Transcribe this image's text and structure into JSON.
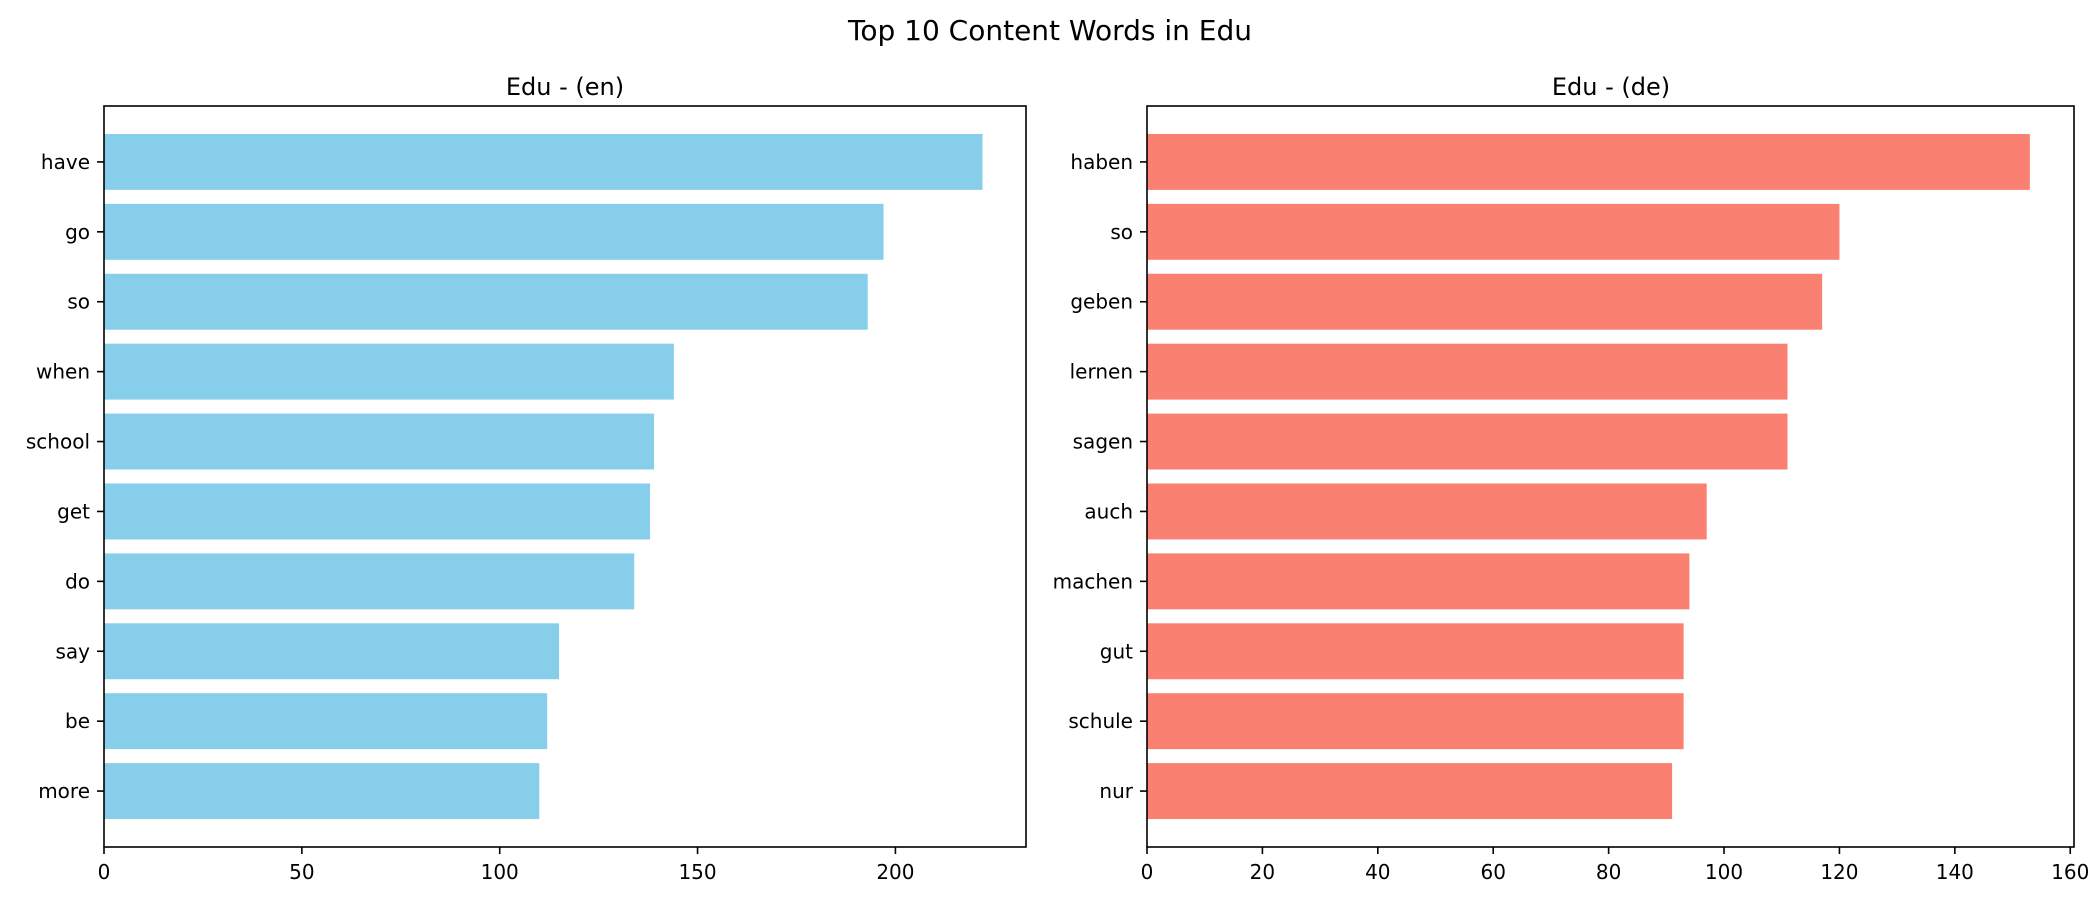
{
  "figure_title": "Top 10 Content Words in Edu",
  "chart_data": [
    {
      "type": "bar",
      "orientation": "horizontal",
      "title": "Edu - (en)",
      "xlabel": "",
      "ylabel": "",
      "categories": [
        "have",
        "go",
        "so",
        "when",
        "school",
        "get",
        "do",
        "say",
        "be",
        "more"
      ],
      "values": [
        222,
        197,
        193,
        144,
        139,
        138,
        134,
        115,
        112,
        110
      ],
      "xlim": [
        0,
        233
      ],
      "xticks": [
        0,
        50,
        100,
        150,
        200
      ],
      "color": "#87CEEB",
      "grid": false,
      "legend": "none"
    },
    {
      "type": "bar",
      "orientation": "horizontal",
      "title": "Edu - (de)",
      "xlabel": "",
      "ylabel": "",
      "categories": [
        "haben",
        "so",
        "geben",
        "lernen",
        "sagen",
        "auch",
        "machen",
        "gut",
        "schule",
        "nur"
      ],
      "values": [
        153,
        120,
        117,
        111,
        111,
        97,
        94,
        93,
        93,
        91
      ],
      "xlim": [
        0,
        160.65
      ],
      "xticks": [
        0,
        20,
        40,
        60,
        80,
        100,
        120,
        140,
        160
      ],
      "color": "#FA8072",
      "grid": false,
      "legend": "none"
    }
  ]
}
